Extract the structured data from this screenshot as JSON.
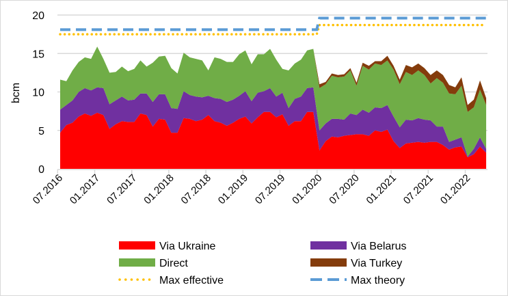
{
  "chart_data": {
    "type": "area",
    "stacked": true,
    "title": "",
    "xlabel": "",
    "ylabel": "bcm",
    "ylim": [
      0,
      20
    ],
    "y_ticks": [
      0,
      5,
      10,
      15,
      20
    ],
    "grid": true,
    "x_start": "07.2016",
    "x_end": "04.2022",
    "x_step": "1 month",
    "x_tick_labels": [
      "07.2016",
      "01.2017",
      "07.2017",
      "01.2018",
      "07.2018",
      "01.2019",
      "07.2019",
      "01.2020",
      "07.2020",
      "01.2021",
      "07.2021",
      "01.2022"
    ],
    "legend_position": "bottom",
    "series": [
      {
        "name": "Via Ukraine",
        "color": "#FF0000",
        "values": [
          4.7,
          5.7,
          6.0,
          6.8,
          7.2,
          6.9,
          7.3,
          7.0,
          5.2,
          5.8,
          6.2,
          6.1,
          6.1,
          7.2,
          7.0,
          5.5,
          6.5,
          6.4,
          4.7,
          4.7,
          6.6,
          6.5,
          6.2,
          6.4,
          7.0,
          6.2,
          6.0,
          5.6,
          6.0,
          6.5,
          6.8,
          5.9,
          6.7,
          7.4,
          7.4,
          6.7,
          7.1,
          5.6,
          6.2,
          6.2,
          7.4,
          7.4,
          2.4,
          3.6,
          4.2,
          4.1,
          4.3,
          4.4,
          4.5,
          4.5,
          4.3,
          5.0,
          4.8,
          5.1,
          3.6,
          2.7,
          3.3,
          3.4,
          3.5,
          3.4,
          3.5,
          3.5,
          3.1,
          2.5,
          2.8,
          2.9,
          1.5,
          1.9,
          2.9,
          2.1
        ]
      },
      {
        "name": "Via Belarus",
        "color": "#7030A0",
        "values": [
          3.0,
          2.6,
          2.9,
          3.2,
          3.3,
          3.3,
          3.3,
          3.5,
          3.2,
          3.1,
          3.2,
          2.8,
          2.9,
          2.6,
          2.8,
          3.2,
          3.2,
          3.3,
          3.2,
          3.1,
          3.5,
          3.1,
          3.2,
          2.9,
          2.5,
          3.0,
          3.1,
          3.1,
          3.0,
          3.0,
          3.3,
          2.9,
          3.2,
          2.7,
          3.1,
          2.7,
          2.8,
          2.3,
          2.9,
          3.2,
          3.1,
          3.2,
          2.6,
          2.3,
          2.3,
          2.4,
          2.1,
          2.8,
          2.5,
          3.2,
          3.0,
          3.0,
          3.1,
          3.2,
          3.2,
          2.7,
          3.1,
          2.9,
          3.1,
          3.0,
          2.8,
          2.0,
          2.4,
          1.0,
          1.0,
          1.2,
          0.1,
          0.7,
          1.2,
          0.5
        ]
      },
      {
        "name": "Direct",
        "color": "#70AD47",
        "values": [
          3.9,
          3.1,
          3.9,
          3.9,
          4.0,
          4.1,
          5.3,
          3.8,
          4.1,
          3.7,
          3.9,
          3.8,
          4.0,
          4.3,
          3.5,
          5.1,
          4.9,
          5.0,
          5.2,
          4.6,
          5.0,
          4.9,
          4.9,
          4.8,
          3.3,
          5.3,
          5.2,
          5.2,
          4.9,
          5.4,
          5.3,
          4.8,
          5.0,
          4.8,
          5.1,
          4.8,
          3.1,
          4.9,
          4.6,
          4.8,
          4.9,
          5.0,
          5.5,
          5.1,
          5.6,
          5.4,
          5.6,
          5.6,
          3.8,
          5.7,
          5.6,
          5.7,
          5.6,
          5.8,
          6.1,
          5.6,
          6.2,
          5.9,
          6.2,
          5.8,
          4.8,
          6.3,
          5.7,
          6.3,
          5.9,
          6.7,
          5.8,
          5.4,
          6.2,
          5.7
        ]
      },
      {
        "name": "Via Turkey",
        "color": "#843C0C",
        "values": [
          0,
          0,
          0,
          0,
          0,
          0,
          0,
          0,
          0,
          0,
          0,
          0,
          0,
          0,
          0,
          0,
          0,
          0,
          0,
          0,
          0,
          0,
          0,
          0,
          0,
          0,
          0,
          0,
          0,
          0,
          0,
          0,
          0,
          0,
          0,
          0,
          0,
          0,
          0,
          0,
          0,
          0,
          0.5,
          0.3,
          0.3,
          0.3,
          0.3,
          0.3,
          0.4,
          0.4,
          0.5,
          0.3,
          0.5,
          0.6,
          0.5,
          0.6,
          0.9,
          1.0,
          0.9,
          0.9,
          1.1,
          1.0,
          1.0,
          1.1,
          0.9,
          1.1,
          0.9,
          1.0,
          1.2,
          0.9
        ]
      }
    ],
    "lines": [
      {
        "name": "Max effective",
        "color": "#FFC000",
        "style": "dotted",
        "value_before_2020": 17.5,
        "value_from_2020": 18.7
      },
      {
        "name": "Max theory",
        "color": "#5B9BD5",
        "style": "dashed",
        "value_before_2020": 18.1,
        "value_from_2020": 19.6
      }
    ],
    "line_change_point": "01.2020"
  }
}
